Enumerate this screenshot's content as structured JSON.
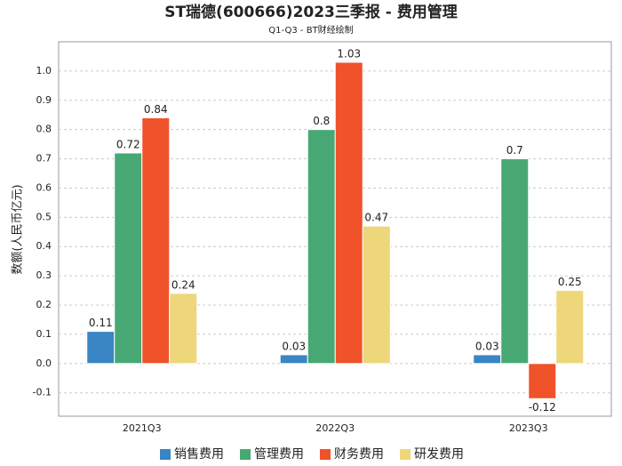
{
  "chart_data": {
    "type": "bar",
    "title": "ST瑞德(600666)2023三季报 - 费用管理",
    "subtitle": "Q1-Q3 - BT财经绘制",
    "y_label": "数额(人民币亿元)",
    "categories": [
      "2021Q3",
      "2022Q3",
      "2023Q3"
    ],
    "series": [
      {
        "name": "销售费用",
        "color": "#3a85c3",
        "values": [
          0.11,
          0.03,
          0.03
        ]
      },
      {
        "name": "管理费用",
        "color": "#48a874",
        "values": [
          0.72,
          0.8,
          0.7
        ]
      },
      {
        "name": "财务费用",
        "color": "#f0522a",
        "values": [
          0.84,
          1.03,
          -0.12
        ]
      },
      {
        "name": "研发费用",
        "color": "#eed67a",
        "values": [
          0.24,
          0.47,
          0.25
        ]
      }
    ],
    "ylim": [
      -0.18,
      1.1
    ],
    "yticks": [
      -0.1,
      {
        "value": 0,
        "label": "0.0"
      },
      0.1,
      0.2,
      0.3,
      0.4,
      0.5,
      0.6,
      0.7,
      0.8,
      0.9,
      {
        "value": 1,
        "label": "1.0"
      }
    ],
    "grid": true,
    "legend": "bottom"
  }
}
